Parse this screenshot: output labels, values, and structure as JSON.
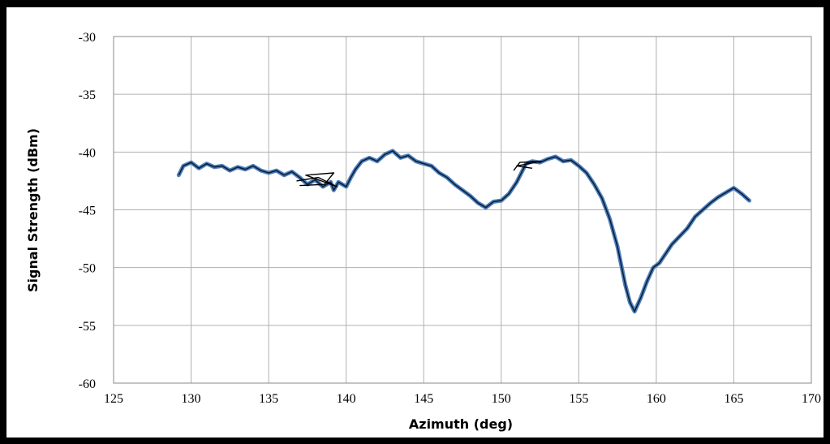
{
  "chart_data": {
    "type": "line",
    "title": "",
    "xlabel": "Azimuth (deg)",
    "ylabel": "Signal Strength (dBm)",
    "xlim": [
      125,
      170
    ],
    "ylim": [
      -60,
      -30
    ],
    "x_ticks": [
      125,
      130,
      135,
      140,
      145,
      150,
      155,
      160,
      165,
      170
    ],
    "y_ticks": [
      -30,
      -35,
      -40,
      -45,
      -50,
      -55,
      -60
    ],
    "grid": true,
    "legend": "none",
    "series": [
      {
        "color": "#4f81bd",
        "points": [
          [
            129.2,
            -42.0
          ],
          [
            129.5,
            -41.2
          ],
          [
            130.0,
            -40.9
          ],
          [
            130.5,
            -41.4
          ],
          [
            131.0,
            -41.0
          ],
          [
            131.5,
            -41.3
          ],
          [
            132.0,
            -41.2
          ],
          [
            132.5,
            -41.6
          ],
          [
            133.0,
            -41.3
          ],
          [
            133.5,
            -41.5
          ],
          [
            134.0,
            -41.2
          ],
          [
            134.5,
            -41.6
          ],
          [
            135.0,
            -41.8
          ],
          [
            135.5,
            -41.6
          ],
          [
            136.0,
            -42.0
          ],
          [
            136.5,
            -41.7
          ],
          [
            137.0,
            -42.2
          ],
          [
            137.5,
            -42.8
          ],
          [
            138.0,
            -42.4
          ],
          [
            138.5,
            -43.0
          ],
          [
            139.0,
            -42.6
          ],
          [
            139.2,
            -43.3
          ],
          [
            139.5,
            -42.6
          ],
          [
            140.0,
            -43.0
          ],
          [
            140.3,
            -42.2
          ],
          [
            140.6,
            -41.5
          ],
          [
            141.0,
            -40.8
          ],
          [
            141.5,
            -40.5
          ],
          [
            142.0,
            -40.8
          ],
          [
            142.5,
            -40.2
          ],
          [
            143.0,
            -39.9
          ],
          [
            143.5,
            -40.5
          ],
          [
            144.0,
            -40.3
          ],
          [
            144.5,
            -40.8
          ],
          [
            145.0,
            -41.0
          ],
          [
            145.5,
            -41.2
          ],
          [
            146.0,
            -41.8
          ],
          [
            146.5,
            -42.2
          ],
          [
            147.0,
            -42.8
          ],
          [
            147.5,
            -43.3
          ],
          [
            148.0,
            -43.8
          ],
          [
            148.5,
            -44.4
          ],
          [
            149.0,
            -44.8
          ],
          [
            149.5,
            -44.3
          ],
          [
            150.0,
            -44.2
          ],
          [
            150.5,
            -43.6
          ],
          [
            151.0,
            -42.6
          ],
          [
            151.3,
            -41.8
          ],
          [
            151.6,
            -41.0
          ],
          [
            152.0,
            -40.8
          ],
          [
            152.5,
            -40.9
          ],
          [
            153.0,
            -40.6
          ],
          [
            153.5,
            -40.4
          ],
          [
            154.0,
            -40.8
          ],
          [
            154.5,
            -40.7
          ],
          [
            155.0,
            -41.2
          ],
          [
            155.5,
            -41.8
          ],
          [
            156.0,
            -42.8
          ],
          [
            156.5,
            -44.0
          ],
          [
            157.0,
            -45.8
          ],
          [
            157.5,
            -48.2
          ],
          [
            158.0,
            -51.5
          ],
          [
            158.3,
            -53.0
          ],
          [
            158.6,
            -53.8
          ],
          [
            159.0,
            -52.6
          ],
          [
            159.4,
            -51.2
          ],
          [
            159.8,
            -50.0
          ],
          [
            160.2,
            -49.6
          ],
          [
            160.6,
            -48.8
          ],
          [
            161.0,
            -48.0
          ],
          [
            161.5,
            -47.3
          ],
          [
            162.0,
            -46.6
          ],
          [
            162.5,
            -45.6
          ],
          [
            163.0,
            -45.0
          ],
          [
            163.5,
            -44.4
          ],
          [
            164.0,
            -43.9
          ],
          [
            164.5,
            -43.5
          ],
          [
            165.0,
            -43.1
          ],
          [
            165.5,
            -43.6
          ],
          [
            166.0,
            -44.2
          ]
        ]
      }
    ],
    "overlays": [
      {
        "color": "#000000",
        "points": [
          [
            136.8,
            -42.5
          ],
          [
            138.2,
            -42.2
          ],
          [
            139.4,
            -43.0
          ],
          [
            137.4,
            -42.0
          ],
          [
            139.2,
            -41.8
          ],
          [
            138.6,
            -42.8
          ],
          [
            137.0,
            -42.9
          ]
        ]
      },
      {
        "color": "#000000",
        "points": [
          [
            150.8,
            -41.6
          ],
          [
            151.2,
            -40.9
          ],
          [
            152.6,
            -40.8
          ],
          [
            151.0,
            -41.2
          ],
          [
            152.0,
            -41.4
          ]
        ]
      }
    ]
  }
}
